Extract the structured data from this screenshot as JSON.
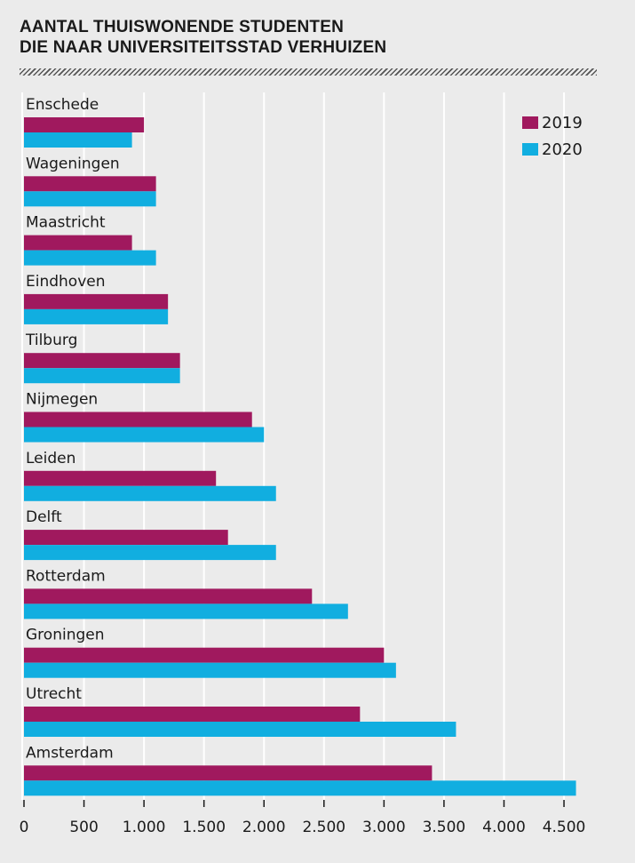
{
  "title_lines": [
    "AANTAL THUISWONENDE STUDENTEN",
    "DIE NAAR UNIVERSITEITSSTAD VERHUIZEN"
  ],
  "colors": {
    "series_2019": "#a0195e",
    "series_2020": "#11aee0",
    "background": "#ebebeb",
    "grid": "#ffffff"
  },
  "chart_data": {
    "type": "bar",
    "orientation": "horizontal",
    "title": "AANTAL THUISWONENDE STUDENTEN DIE NAAR UNIVERSITEITSSTAD VERHUIZEN",
    "categories": [
      "Enschede",
      "Wageningen",
      "Maastricht",
      "Eindhoven",
      "Tilburg",
      "Nijmegen",
      "Leiden",
      "Delft",
      "Rotterdam",
      "Groningen",
      "Utrecht",
      "Amsterdam"
    ],
    "series": [
      {
        "name": "2019",
        "values": [
          1000,
          1100,
          900,
          1200,
          1300,
          1900,
          1600,
          1700,
          2400,
          3000,
          2800,
          3400
        ]
      },
      {
        "name": "2020",
        "values": [
          900,
          1100,
          1100,
          1200,
          1300,
          2000,
          2100,
          2100,
          2700,
          3100,
          3600,
          4600
        ]
      }
    ],
    "xlim": [
      0,
      4600
    ],
    "xticks": [
      0,
      500,
      1000,
      1500,
      2000,
      2500,
      3000,
      3500,
      4000,
      4500
    ],
    "xtick_labels": [
      "0",
      "500",
      "1.000",
      "1.500",
      "2.000",
      "2.500",
      "3.000",
      "3.500",
      "4.000",
      "4.500"
    ],
    "grid": true,
    "legend_position": "top-right"
  }
}
